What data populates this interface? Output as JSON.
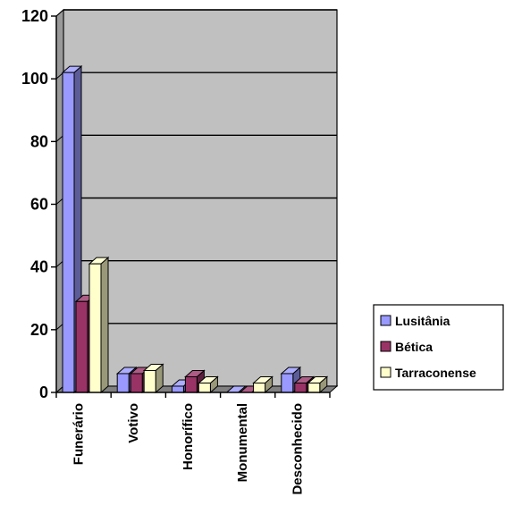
{
  "chart_data": {
    "type": "bar",
    "categories": [
      "Funerário",
      "Votivo",
      "Honorífico",
      "Monumental",
      "Desconhecido"
    ],
    "series": [
      {
        "name": "Lusitânia",
        "values": [
          102,
          6,
          2,
          0,
          6
        ],
        "color": "#9999ff"
      },
      {
        "name": "Bética",
        "values": [
          29,
          6,
          5,
          0,
          3
        ],
        "color": "#993366"
      },
      {
        "name": "Tarraconense",
        "values": [
          41,
          7,
          3,
          3,
          3
        ],
        "color": "#ffffcc"
      }
    ],
    "ylim": [
      0,
      120
    ],
    "yticks": [
      "0",
      "20",
      "40",
      "60",
      "80",
      "100",
      "120"
    ],
    "grid": true,
    "legend_position": "right",
    "background": "#c0c0c0",
    "title": "",
    "xlabel": "",
    "ylabel": ""
  }
}
